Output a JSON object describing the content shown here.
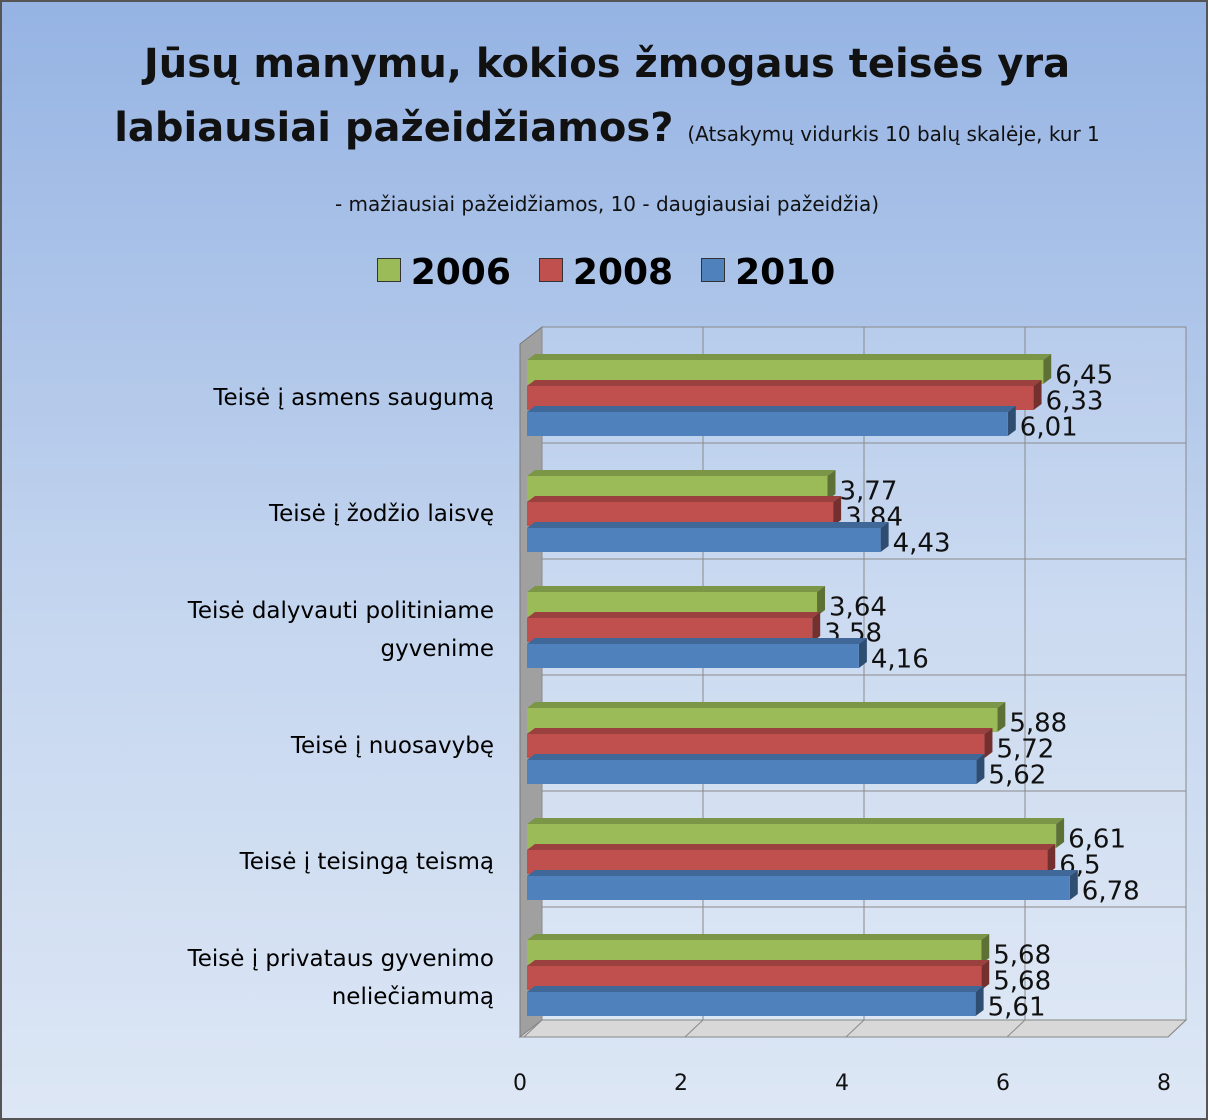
{
  "chart_data": {
    "type": "bar",
    "orientation": "horizontal",
    "title": "Jūsų manymu, kokios žmogaus teisės yra labiausiai pažeidžiamos?",
    "subtitle": "(Atsakymų vidurkis 10 balų skalėje, kur 1 - mažiausiai pažeidžiamos, 10 - daugiausiai pažeidžia)",
    "categories": [
      "Teisė į asmens saugumą",
      "Teisė į žodžio laisvę",
      "Teisė dalyvauti politiniame gyvenime",
      "Teisė į nuosavybę",
      "Teisė į teisingą teismą",
      "Teisė į privataus gyvenimo neliečiamumą"
    ],
    "series": [
      {
        "name": "2006",
        "color": "#9bbb59",
        "values": [
          6.45,
          3.77,
          3.64,
          5.88,
          6.61,
          5.68
        ],
        "value_labels": [
          "6,45",
          "3,77",
          "3,64",
          "5,88",
          "6,61",
          "5,68"
        ]
      },
      {
        "name": "2008",
        "color": "#c0504d",
        "values": [
          6.33,
          3.84,
          3.58,
          5.72,
          6.5,
          5.68
        ],
        "value_labels": [
          "6,33",
          "3,84",
          "3,58",
          "5,72",
          "6,5",
          "5,68"
        ]
      },
      {
        "name": "2010",
        "color": "#4f81bd",
        "values": [
          6.01,
          4.43,
          4.16,
          5.62,
          6.78,
          5.61
        ],
        "value_labels": [
          "6,01",
          "4,43",
          "4,16",
          "5,62",
          "6,78",
          "5,61"
        ]
      }
    ],
    "xlim": [
      0,
      8
    ],
    "xticks": [
      0,
      2,
      4,
      6,
      8
    ],
    "grid": true,
    "legend": "top"
  }
}
